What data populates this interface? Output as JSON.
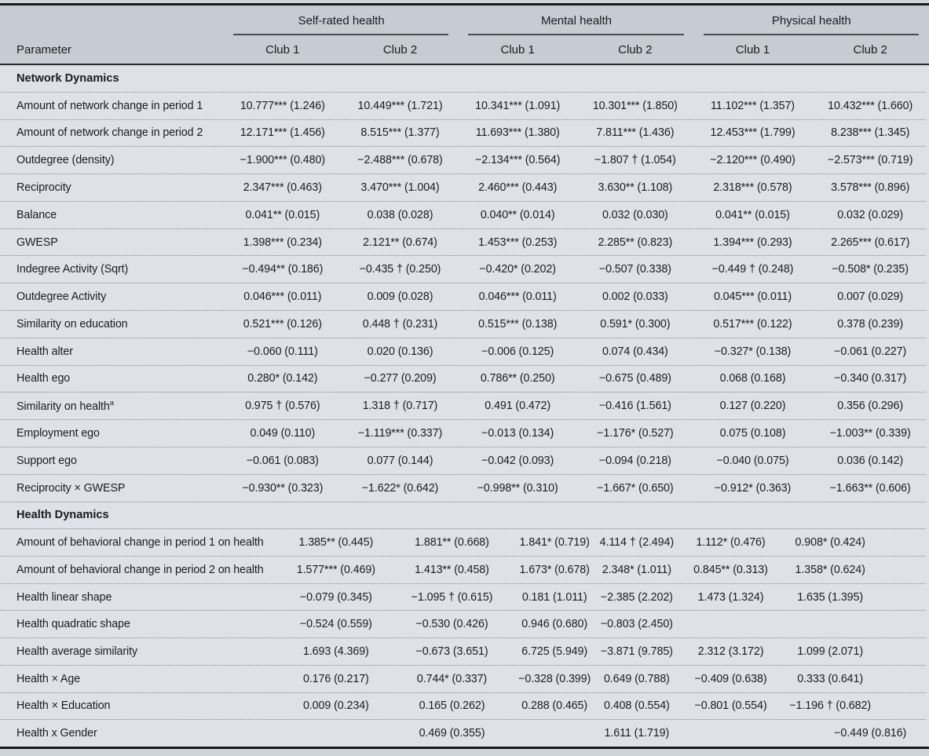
{
  "colors": {
    "strip": "#ced2d9",
    "header-bg": "#c7cbd4",
    "body-bg": "#dfe1e9",
    "rule-dark": "#16181c",
    "rule-mid": "#26292e",
    "underline": "#484c53",
    "dotted": "#83878e",
    "text": "#1b1c1f"
  },
  "table": {
    "param_header": "Parameter",
    "groups": [
      {
        "label": "Self-rated health",
        "clubs": [
          "Club 1",
          "Club 2"
        ]
      },
      {
        "label": "Mental health",
        "clubs": [
          "Club 1",
          "Club 2"
        ]
      },
      {
        "label": "Physical health",
        "clubs": [
          "Club 1",
          "Club 2"
        ]
      }
    ],
    "sections": [
      {
        "title": "Network Dynamics",
        "rows": [
          {
            "label": "Amount of network change in period 1",
            "values": [
              "10.777*** (1.246)",
              "10.449*** (1.721)",
              "10.341*** (1.091)",
              "10.301*** (1.850)",
              "11.102*** (1.357)",
              "10.432*** (1.660)"
            ]
          },
          {
            "label": "Amount of network change in period 2",
            "values": [
              "12.171*** (1.456)",
              "8.515*** (1.377)",
              "11.693*** (1.380)",
              "7.811*** (1.436)",
              "12.453*** (1.799)",
              "8.238*** (1.345)"
            ]
          },
          {
            "label": "Outdegree (density)",
            "values": [
              "−1.900*** (0.480)",
              "−2.488*** (0.678)",
              "−2.134*** (0.564)",
              "−1.807 † (1.054)",
              "−2.120*** (0.490)",
              "−2.573*** (0.719)"
            ]
          },
          {
            "label": "Reciprocity",
            "values": [
              "2.347*** (0.463)",
              "3.470*** (1.004)",
              "2.460*** (0.443)",
              "3.630** (1.108)",
              "2.318*** (0.578)",
              "3.578*** (0.896)"
            ]
          },
          {
            "label": "Balance",
            "values": [
              "0.041** (0.015)",
              "0.038 (0.028)",
              "0.040** (0.014)",
              "0.032 (0.030)",
              "0.041** (0.015)",
              "0.032 (0.029)"
            ]
          },
          {
            "label": "GWESP",
            "values": [
              "1.398*** (0.234)",
              "2.121** (0.674)",
              "1.453*** (0.253)",
              "2.285** (0.823)",
              "1.394*** (0.293)",
              "2.265*** (0.617)"
            ]
          },
          {
            "label": "Indegree Activity (Sqrt)",
            "values": [
              "−0.494** (0.186)",
              "−0.435 † (0.250)",
              "−0.420* (0.202)",
              "−0.507 (0.338)",
              "−0.449 † (0.248)",
              "−0.508* (0.235)"
            ]
          },
          {
            "label": "Outdegree Activity",
            "values": [
              "0.046*** (0.011)",
              "0.009 (0.028)",
              "0.046*** (0.011)",
              "0.002 (0.033)",
              "0.045*** (0.011)",
              "0.007 (0.029)"
            ]
          },
          {
            "label": "Similarity on education",
            "values": [
              "0.521*** (0.126)",
              "0.448 † (0.231)",
              "0.515*** (0.138)",
              "0.591* (0.300)",
              "0.517*** (0.122)",
              "0.378 (0.239)"
            ]
          },
          {
            "label": "Health alter",
            "values": [
              "−0.060 (0.111)",
              "0.020 (0.136)",
              "−0.006 (0.125)",
              "0.074 (0.434)",
              "−0.327* (0.138)",
              "−0.061 (0.227)"
            ]
          },
          {
            "label": "Health ego",
            "values": [
              "0.280* (0.142)",
              "−0.277 (0.209)",
              "0.786** (0.250)",
              "−0.675 (0.489)",
              "0.068 (0.168)",
              "−0.340 (0.317)"
            ]
          },
          {
            "label": "Similarity on health",
            "sup": "a",
            "values": [
              "0.975 † (0.576)",
              "1.318 † (0.717)",
              "0.491 (0.472)",
              "−0.416 (1.561)",
              "0.127 (0.220)",
              "0.356 (0.296)"
            ]
          },
          {
            "label": "Employment ego",
            "values": [
              "0.049 (0.110)",
              "−1.119*** (0.337)",
              "−0.013 (0.134)",
              "−1.176* (0.527)",
              "0.075 (0.108)",
              "−1.003** (0.339)"
            ]
          },
          {
            "label": "Support ego",
            "values": [
              "−0.061 (0.083)",
              "0.077 (0.144)",
              "−0.042 (0.093)",
              "−0.094 (0.218)",
              "−0.040 (0.075)",
              "0.036 (0.142)"
            ]
          },
          {
            "label": "Reciprocity × GWESP",
            "values": [
              "−0.930** (0.323)",
              "−1.622* (0.642)",
              "−0.998** (0.310)",
              "−1.667* (0.650)",
              "−0.912* (0.363)",
              "−1.663** (0.606)"
            ]
          }
        ]
      },
      {
        "title": "Health Dynamics",
        "rows": [
          {
            "label": "Amount of behavioral change in period 1 on health",
            "values": [
              "1.385** (0.445)",
              "1.881** (0.668)",
              "1.841* (0.719)",
              "4.114 † (2.494)",
              "1.112* (0.476)",
              "0.908* (0.424)"
            ]
          },
          {
            "label": "Amount of behavioral change in period 2 on health",
            "values": [
              "1.577*** (0.469)",
              "1.413** (0.458)",
              "1.673* (0.678)",
              "2.348* (1.011)",
              "0.845** (0.313)",
              "1.358* (0.624)"
            ]
          },
          {
            "label": "Health linear shape",
            "values": [
              "−0.079 (0.345)",
              "−1.095 † (0.615)",
              "0.181 (1.011)",
              "−2.385 (2.202)",
              "1.473 (1.324)",
              "1.635 (1.395)"
            ]
          },
          {
            "label": "Health quadratic shape",
            "values": [
              "−0.524 (0.559)",
              "−0.530 (0.426)",
              "0.946 (0.680)",
              "−0.803 (2.450)",
              "",
              ""
            ]
          },
          {
            "label": "Health average similarity",
            "values": [
              "1.693 (4.369)",
              "−0.673 (3.651)",
              "6.725 (5.949)",
              "−3.871 (9.785)",
              "2.312 (3.172)",
              "1.099 (2.071)"
            ]
          },
          {
            "label": "Health × Age",
            "values": [
              "0.176 (0.217)",
              "0.744* (0.337)",
              "−0.328 (0.399)",
              "0.649 (0.788)",
              "−0.409 (0.638)",
              "0.333 (0.641)"
            ]
          },
          {
            "label": "Health × Education",
            "values": [
              "0.009 (0.234)",
              "0.165 (0.262)",
              "0.288 (0.465)",
              "0.408 (0.554)",
              "−0.801 (0.554)",
              "−1.196 † (0.682)"
            ]
          },
          {
            "label": "Health x Gender",
            "values": [
              "",
              "0.469 (0.355)",
              "",
              "1.611 (1.719)",
              "",
              "−0.449 (0.816)"
            ]
          }
        ]
      }
    ]
  }
}
